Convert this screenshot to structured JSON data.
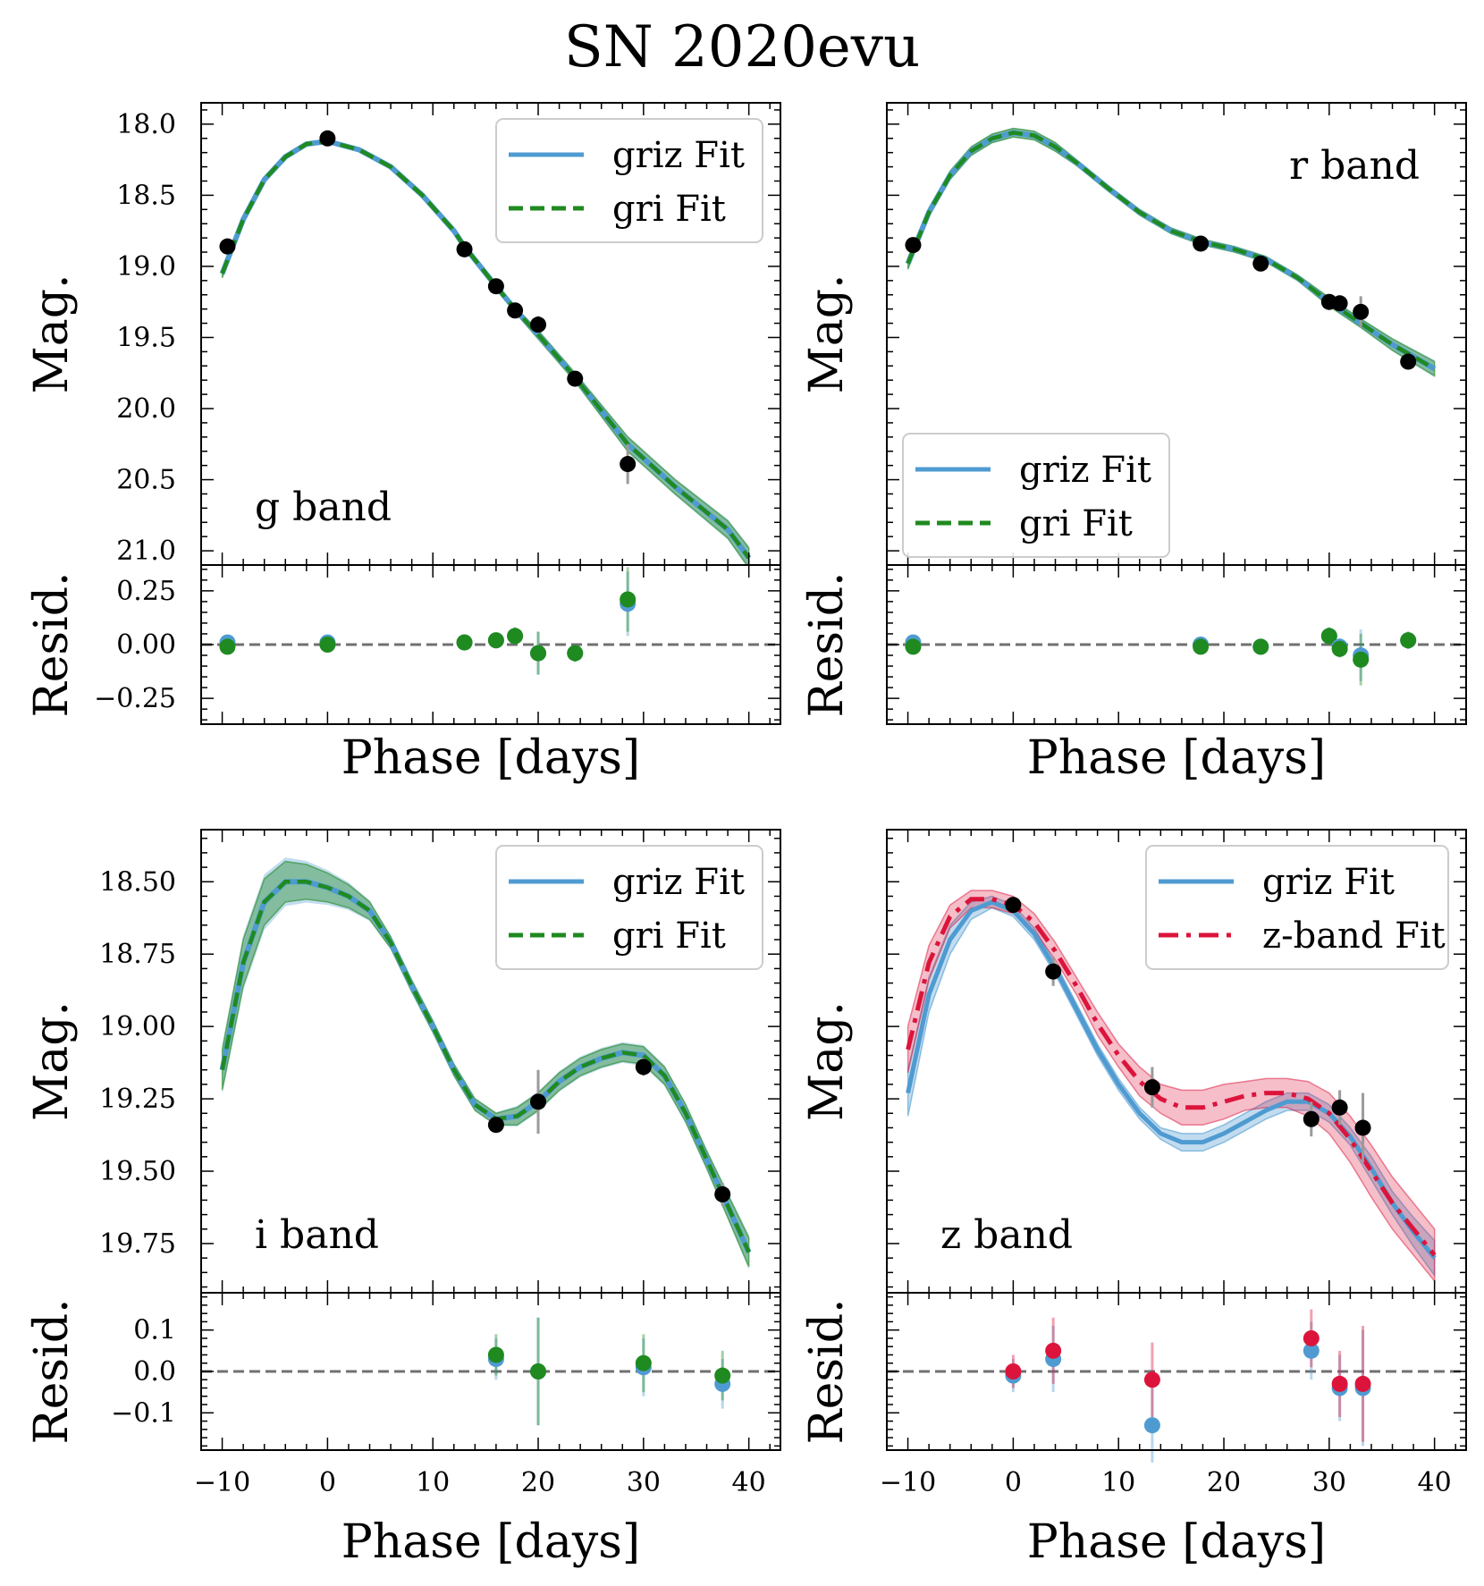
{
  "chart_data": {
    "title": "SN 2020evu",
    "colors": {
      "griz": "#4f9bd1",
      "gri": "#1f8a1f",
      "z": "#dc143c",
      "data": "#000000",
      "zero": "#707070",
      "err": "#9a9a9a"
    },
    "panels": [
      {
        "id": "g",
        "type": "line",
        "band_label": "g band",
        "xlabel": "Phase [days]",
        "ylabel": "Mag.",
        "resid_ylabel": "Resid.",
        "xlim": [
          -12,
          43
        ],
        "ylim": [
          21.1,
          17.85
        ],
        "resid_ylim": [
          -0.37,
          0.37
        ],
        "yticks": [
          18.0,
          18.5,
          19.0,
          19.5,
          20.0,
          20.5,
          21.0
        ],
        "ytick_labels": [
          "18.0",
          "18.5",
          "19.0",
          "19.5",
          "20.0",
          "20.5",
          "21.0"
        ],
        "resid_yticks": [
          0.25,
          0.0,
          -0.25
        ],
        "resid_ytick_labels": [
          "0.25",
          "0.00",
          "−0.25"
        ],
        "legend": {
          "position": "top-right",
          "entries": [
            "griz Fit",
            "gri Fit"
          ]
        },
        "curve_x": [
          -10,
          -8,
          -6,
          -4,
          -2,
          0,
          3,
          6,
          9,
          12,
          13,
          16,
          18,
          20,
          23.5,
          28.5,
          33,
          38,
          40
        ],
        "curve_y": [
          19.05,
          18.67,
          18.39,
          18.23,
          18.14,
          18.12,
          18.18,
          18.3,
          18.5,
          18.75,
          18.86,
          19.14,
          19.32,
          19.48,
          19.78,
          20.25,
          20.55,
          20.85,
          21.05
        ],
        "curve_band": [
          0.03,
          0.02,
          0.02,
          0.01,
          0.01,
          0.01,
          0.01,
          0.01,
          0.01,
          0.01,
          0.01,
          0.02,
          0.02,
          0.03,
          0.03,
          0.05,
          0.05,
          0.06,
          0.07
        ],
        "points_x": [
          -9.5,
          0,
          13,
          16,
          17.8,
          20,
          23.5,
          28.5
        ],
        "points_y": [
          18.86,
          18.1,
          18.88,
          19.14,
          19.31,
          19.41,
          19.79,
          20.39
        ],
        "points_err": [
          0.02,
          0.02,
          0.02,
          0.02,
          0.03,
          0.06,
          0.03,
          0.14
        ],
        "resid_griz": [
          0.01,
          0.01,
          0.01,
          0.02,
          0.04,
          -0.04,
          -0.04,
          0.19
        ],
        "resid_gri": [
          -0.01,
          0.0,
          0.01,
          0.02,
          0.04,
          -0.04,
          -0.04,
          0.21
        ],
        "resid_err": [
          0.03,
          0.03,
          0.03,
          0.03,
          0.04,
          0.1,
          0.04,
          0.15
        ]
      },
      {
        "id": "r",
        "type": "line",
        "band_label": "r band",
        "xlabel": "Phase [days]",
        "ylabel": "Mag.",
        "resid_ylabel": "Resid.",
        "xlim": [
          -12,
          43
        ],
        "ylim": [
          21.1,
          17.85
        ],
        "resid_ylim": [
          -0.37,
          0.37
        ],
        "yticks": [
          18.0,
          18.5,
          19.0,
          19.5,
          20.0,
          20.5,
          21.0
        ],
        "ytick_labels": [],
        "resid_yticks": [
          0.25,
          0.0,
          -0.25
        ],
        "resid_ytick_labels": [],
        "legend": {
          "position": "lower-left",
          "entries": [
            "griz Fit",
            "gri Fit"
          ]
        },
        "curve_x": [
          -10,
          -8,
          -6,
          -4,
          -2,
          0,
          2,
          4,
          6,
          9,
          12,
          15,
          18,
          21,
          24,
          27,
          30,
          33,
          36,
          40
        ],
        "curve_y": [
          18.98,
          18.62,
          18.36,
          18.19,
          18.1,
          18.06,
          18.08,
          18.16,
          18.27,
          18.45,
          18.62,
          18.75,
          18.83,
          18.88,
          18.95,
          19.08,
          19.25,
          19.4,
          19.55,
          19.72
        ],
        "curve_band": [
          0.04,
          0.03,
          0.03,
          0.03,
          0.03,
          0.03,
          0.03,
          0.03,
          0.02,
          0.02,
          0.02,
          0.02,
          0.02,
          0.02,
          0.02,
          0.02,
          0.03,
          0.03,
          0.04,
          0.05
        ],
        "points_x": [
          -9.5,
          17.8,
          23.5,
          30,
          31,
          33,
          37.5
        ],
        "points_y": [
          18.85,
          18.84,
          18.98,
          19.25,
          19.26,
          19.32,
          19.67
        ],
        "points_err": [
          0.02,
          0.02,
          0.02,
          0.03,
          0.03,
          0.11,
          0.03
        ],
        "resid_griz": [
          0.01,
          0.0,
          -0.01,
          0.04,
          -0.01,
          -0.05,
          0.02
        ],
        "resid_gri": [
          -0.01,
          -0.01,
          -0.01,
          0.04,
          -0.02,
          -0.07,
          0.02
        ],
        "resid_err": [
          0.03,
          0.03,
          0.03,
          0.04,
          0.04,
          0.12,
          0.04
        ]
      },
      {
        "id": "i",
        "type": "line",
        "band_label": "i band",
        "xlabel": "Phase [days]",
        "ylabel": "Mag.",
        "resid_ylabel": "Resid.",
        "xlim": [
          -12,
          43
        ],
        "ylim": [
          19.92,
          18.32
        ],
        "resid_ylim": [
          -0.19,
          0.19
        ],
        "yticks": [
          18.5,
          18.75,
          19.0,
          19.25,
          19.5,
          19.75
        ],
        "ytick_labels": [
          "18.50",
          "18.75",
          "19.00",
          "19.25",
          "19.50",
          "19.75"
        ],
        "resid_yticks": [
          0.1,
          0.0,
          -0.1
        ],
        "resid_ytick_labels": [
          "0.1",
          "0.0",
          "−0.1"
        ],
        "legend": {
          "position": "top-right",
          "entries": [
            "griz Fit",
            "gri Fit"
          ]
        },
        "curve_x": [
          -10,
          -8,
          -6,
          -4,
          -2,
          0,
          2,
          4,
          6,
          8,
          10,
          12,
          14,
          16,
          18,
          20,
          22,
          24,
          26,
          28,
          30,
          32,
          34,
          36,
          38,
          40
        ],
        "curve_y": [
          19.15,
          18.78,
          18.57,
          18.5,
          18.5,
          18.52,
          18.55,
          18.6,
          18.71,
          18.86,
          19.0,
          19.15,
          19.27,
          19.32,
          19.31,
          19.26,
          19.19,
          19.14,
          19.11,
          19.09,
          19.1,
          19.17,
          19.3,
          19.46,
          19.62,
          19.78
        ],
        "curve_band": [
          0.07,
          0.08,
          0.08,
          0.07,
          0.06,
          0.05,
          0.04,
          0.03,
          0.02,
          0.02,
          0.02,
          0.02,
          0.02,
          0.02,
          0.03,
          0.03,
          0.03,
          0.03,
          0.03,
          0.03,
          0.03,
          0.03,
          0.03,
          0.03,
          0.04,
          0.05
        ],
        "points_x": [
          16,
          20,
          30
        ],
        "points_y": [
          19.34,
          19.26,
          19.14
        ],
        "points_err": [
          0.02,
          0.11,
          0.03
        ],
        "extra_points_x": [
          37.5
        ],
        "extra_points_y": [
          19.58
        ],
        "extra_points_err": [
          0.04
        ],
        "resid_x": [
          16,
          20,
          30,
          37.5
        ],
        "resid_griz": [
          0.03,
          0.0,
          0.01,
          -0.03
        ],
        "resid_gri": [
          0.04,
          0.0,
          0.02,
          -0.01
        ],
        "resid_err": [
          0.05,
          0.13,
          0.07,
          0.06
        ]
      },
      {
        "id": "z",
        "type": "line",
        "band_label": "z band",
        "xlabel": "Phase [days]",
        "ylabel": "Mag.",
        "resid_ylabel": "Resid.",
        "xlim": [
          -12,
          43
        ],
        "ylim": [
          19.92,
          18.32
        ],
        "resid_ylim": [
          -0.19,
          0.19
        ],
        "yticks": [
          18.5,
          18.75,
          19.0,
          19.25,
          19.5,
          19.75
        ],
        "ytick_labels": [],
        "resid_yticks": [
          0.1,
          0.0,
          -0.1
        ],
        "resid_ytick_labels": [],
        "xticks": [
          -10,
          0,
          10,
          20,
          30,
          40
        ],
        "xtick_labels": [
          "−10",
          "0",
          "10",
          "20",
          "30",
          "40"
        ],
        "legend": {
          "position": "top-right",
          "entries": [
            "griz Fit",
            "z-band Fit"
          ]
        },
        "curve_x": [
          -10,
          -8,
          -6,
          -4,
          -2,
          0,
          2,
          4,
          6,
          8,
          10,
          12,
          14,
          16,
          18,
          20,
          22,
          24,
          26,
          28,
          30,
          32,
          34,
          36,
          38,
          40
        ],
        "griz_y": [
          19.23,
          18.89,
          18.7,
          18.6,
          18.57,
          18.6,
          18.68,
          18.8,
          18.94,
          19.08,
          19.2,
          19.3,
          19.37,
          19.4,
          19.4,
          19.37,
          19.33,
          19.29,
          19.26,
          19.26,
          19.3,
          19.38,
          19.49,
          19.61,
          19.71,
          19.8
        ],
        "z_y": [
          19.08,
          18.78,
          18.62,
          18.56,
          18.56,
          18.58,
          18.64,
          18.74,
          18.86,
          18.99,
          19.1,
          19.19,
          19.25,
          19.28,
          19.28,
          19.26,
          19.24,
          19.23,
          19.23,
          19.25,
          19.3,
          19.39,
          19.5,
          19.61,
          19.7,
          19.79
        ],
        "griz_band": [
          0.08,
          0.06,
          0.05,
          0.03,
          0.02,
          0.02,
          0.02,
          0.02,
          0.02,
          0.02,
          0.02,
          0.02,
          0.02,
          0.03,
          0.03,
          0.03,
          0.03,
          0.03,
          0.03,
          0.03,
          0.03,
          0.03,
          0.04,
          0.04,
          0.05,
          0.06
        ],
        "z_band": [
          0.08,
          0.06,
          0.04,
          0.03,
          0.03,
          0.03,
          0.03,
          0.03,
          0.03,
          0.04,
          0.04,
          0.05,
          0.05,
          0.06,
          0.06,
          0.06,
          0.05,
          0.05,
          0.05,
          0.06,
          0.07,
          0.08,
          0.09,
          0.09,
          0.09,
          0.09
        ],
        "points_x": [
          0,
          3.8,
          13.2,
          28.3,
          31,
          33.2
        ],
        "points_y": [
          18.58,
          18.81,
          19.21,
          19.32,
          19.28,
          19.35
        ],
        "points_err": [
          0.02,
          0.05,
          0.07,
          0.06,
          0.06,
          0.12
        ],
        "resid_griz": [
          -0.01,
          0.03,
          -0.13,
          0.05,
          -0.04,
          -0.04
        ],
        "resid_z": [
          0.0,
          0.05,
          -0.02,
          0.08,
          -0.03,
          -0.03
        ],
        "resid_err": [
          0.04,
          0.08,
          0.09,
          0.07,
          0.08,
          0.14
        ]
      }
    ]
  }
}
